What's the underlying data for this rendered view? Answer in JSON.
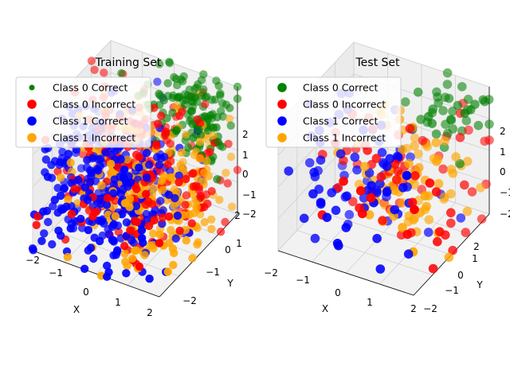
{
  "chart_data": [
    {
      "type": "scatter",
      "projection": "3d",
      "title": "Training Set",
      "xlabel": "X",
      "ylabel": "Y",
      "zlabel": "",
      "xlim": [
        -2,
        2
      ],
      "ylim": [
        -2,
        2
      ],
      "zlim": [
        -2,
        2
      ],
      "xticks": [
        "−2",
        "−1",
        "0",
        "1",
        "2"
      ],
      "yticks": [
        "−2",
        "−1",
        "0",
        "1",
        "2"
      ],
      "zticks": [
        "−2",
        "−1",
        "0",
        "1",
        "2"
      ],
      "legend_location": "upper-left",
      "series": [
        {
          "name": "Class 0 Correct",
          "color": "#008000",
          "cluster": {
            "center": [
              0.9,
              1.4,
              1.2
            ],
            "spread": [
              0.7,
              0.5,
              0.7
            ],
            "count": 130
          }
        },
        {
          "name": "Class 0 Incorrect",
          "color": "#ff0000",
          "cluster": {
            "center": [
              0.1,
              0.1,
              0.0
            ],
            "spread": [
              1.1,
              1.1,
              1.1
            ],
            "count": 240
          }
        },
        {
          "name": "Class 1 Correct",
          "color": "#0000ff",
          "cluster": {
            "center": [
              -0.5,
              -0.6,
              -0.3
            ],
            "spread": [
              1.0,
              1.0,
              1.1
            ],
            "count": 340
          }
        },
        {
          "name": "Class 1 Incorrect",
          "color": "#ffa500",
          "cluster": {
            "center": [
              0.2,
              0.3,
              -0.6
            ],
            "spread": [
              1.1,
              1.0,
              1.0
            ],
            "count": 300
          }
        }
      ]
    },
    {
      "type": "scatter",
      "projection": "3d",
      "title": "Test Set",
      "xlabel": "X",
      "ylabel": "Y",
      "zlabel": "",
      "xlim": [
        -2,
        2
      ],
      "ylim": [
        -2,
        2
      ],
      "zlim": [
        -2,
        2
      ],
      "xticks": [
        "−2",
        "−1",
        "0",
        "1",
        "2"
      ],
      "yticks": [
        "−2",
        "−1",
        "0",
        "1",
        "2"
      ],
      "zticks": [
        "2",
        "1",
        "0",
        "−1",
        "−2"
      ],
      "legend_location": "upper-left",
      "series": [
        {
          "name": "Class 0 Correct",
          "color": "#008000",
          "cluster": {
            "center": [
              1.0,
              1.5,
              1.2
            ],
            "spread": [
              0.6,
              0.5,
              0.6
            ],
            "count": 40
          }
        },
        {
          "name": "Class 0 Incorrect",
          "color": "#ff0000",
          "cluster": {
            "center": [
              0.3,
              0.2,
              -0.2
            ],
            "spread": [
              1.1,
              1.1,
              1.0
            ],
            "count": 75
          }
        },
        {
          "name": "Class 1 Correct",
          "color": "#0000ff",
          "cluster": {
            "center": [
              -0.4,
              -0.5,
              -0.2
            ],
            "spread": [
              1.0,
              1.0,
              1.0
            ],
            "count": 80
          }
        },
        {
          "name": "Class 1 Incorrect",
          "color": "#ffa500",
          "cluster": {
            "center": [
              0.4,
              0.5,
              -0.5
            ],
            "spread": [
              1.0,
              1.0,
              1.0
            ],
            "count": 85
          }
        }
      ]
    }
  ]
}
